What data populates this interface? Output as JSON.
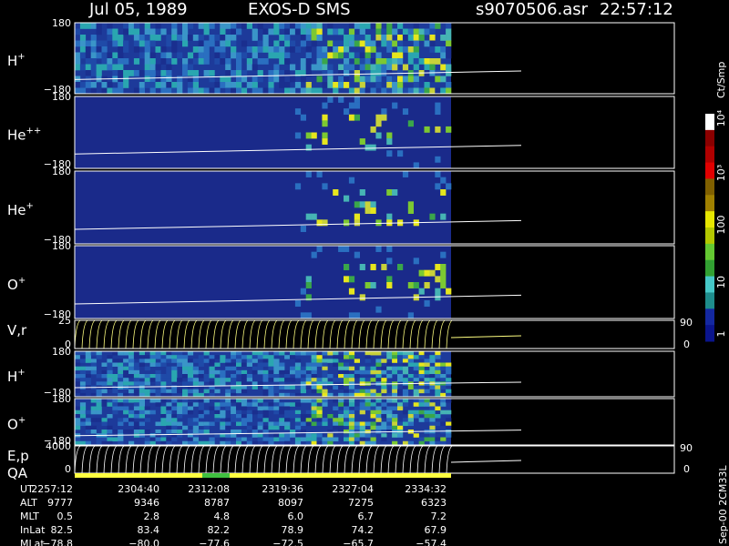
{
  "header": {
    "date": "Jul 05, 1989",
    "instrument": "EXOS-D SMS",
    "file": "s9070506.asr",
    "time": "22:57:12"
  },
  "panels": [
    {
      "label": "H",
      "sup": "+",
      "top": "180",
      "bottom": "−180"
    },
    {
      "label": "He",
      "sup": "++",
      "top": "180",
      "bottom": "−180"
    },
    {
      "label": "He",
      "sup": "+",
      "top": "180",
      "bottom": "−180"
    },
    {
      "label": "O",
      "sup": "+",
      "top": "180",
      "bottom": "−180"
    },
    {
      "label": "V,r",
      "top": "25",
      "bottom": "0",
      "right_top": "90",
      "right_bottom": "0"
    },
    {
      "label": "H",
      "sup": "+",
      "top": "180",
      "bottom": "−180"
    },
    {
      "label": "O",
      "sup": "+",
      "top": "180",
      "bottom": "−180"
    },
    {
      "label": "E,p",
      "top": "4000",
      "bottom": "0",
      "right_top": "90",
      "right_bottom": "0"
    }
  ],
  "qa_label": "QA",
  "colorbar": {
    "title": "Ct/Smp",
    "ticks": [
      "10⁴",
      "10³",
      "100",
      "10",
      "1"
    ]
  },
  "orbit": {
    "rows": [
      [
        "UT",
        "2257:12",
        "2304:40",
        "2312:08",
        "2319:36",
        "2327:04",
        "2334:32"
      ],
      [
        "ALT",
        "9777",
        "9346",
        "8787",
        "8097",
        "7275",
        "6323"
      ],
      [
        "MLT",
        "0.5",
        "2.8",
        "4.8",
        "6.0",
        "6.7",
        "7.2"
      ],
      [
        "InLat",
        "82.5",
        "83.4",
        "82.2",
        "78.9",
        "74.2",
        "67.9"
      ],
      [
        "MLat",
        "−78.8",
        "−80.0",
        "−77.6",
        "−72.5",
        "−65.7",
        "−57.4"
      ]
    ]
  },
  "footer": "Sep-00 2CM33L"
}
